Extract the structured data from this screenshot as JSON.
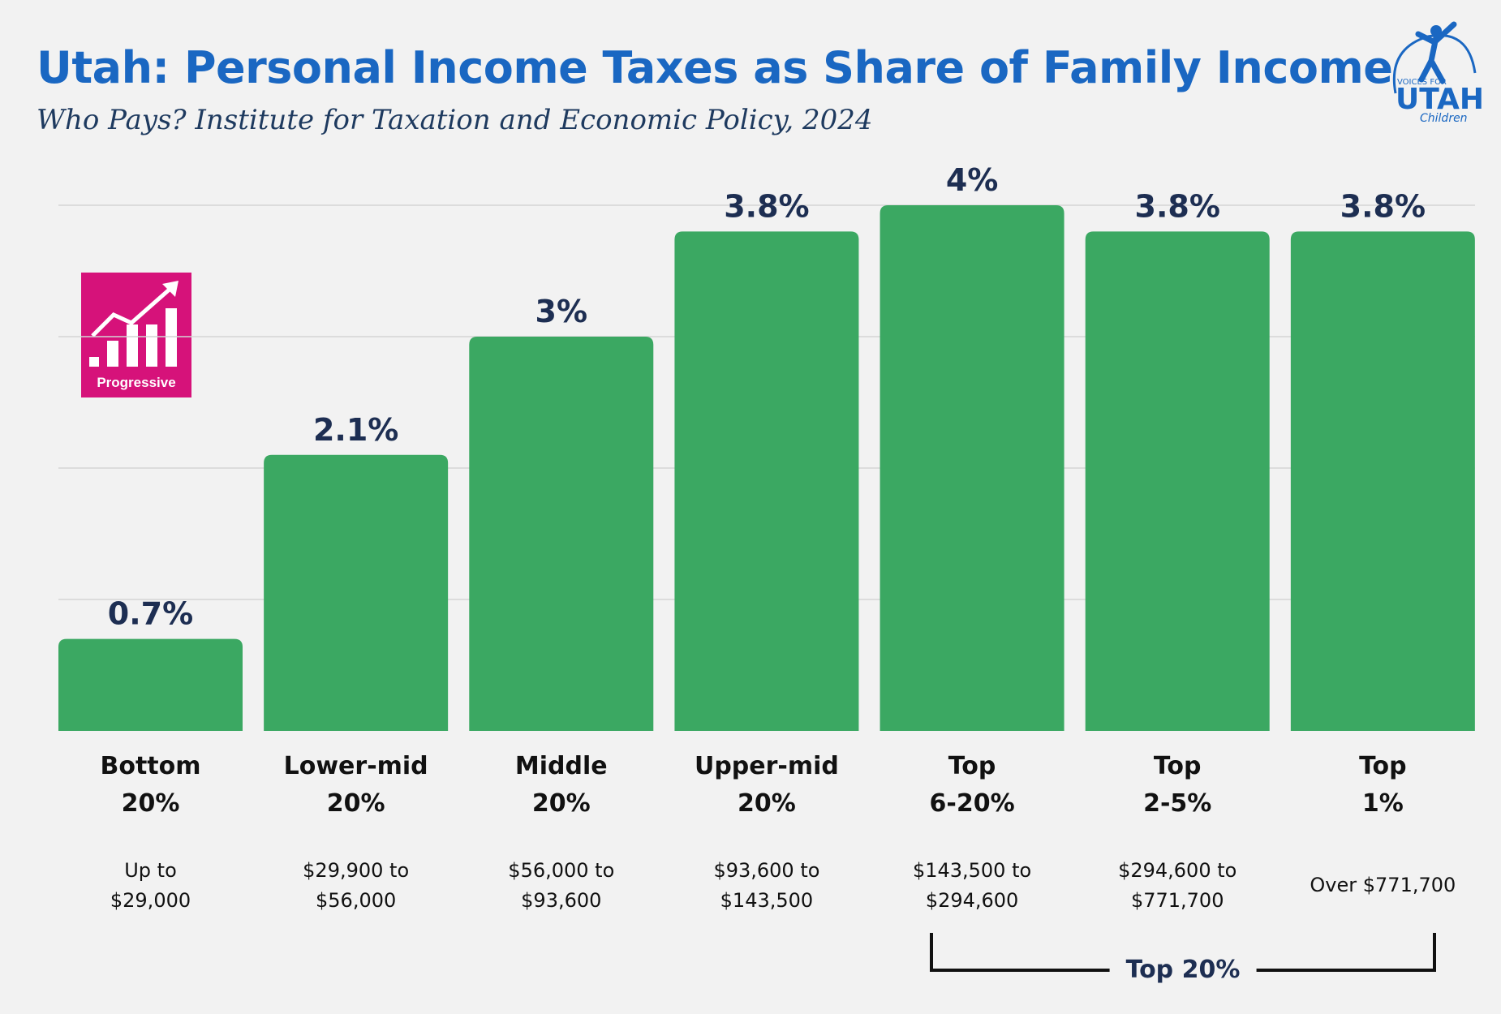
{
  "header": {
    "title": "Utah: Personal Income Taxes as Share of Family Income",
    "subtitle": "Who Pays? Institute for Taxation and Economic Policy, 2024"
  },
  "logo": {
    "line1": "VOICES FOR",
    "line2": "UTAH",
    "line3": "Children",
    "color": "#1a67c2"
  },
  "badge": {
    "label": "Progressive",
    "color": "#d6127a"
  },
  "chart_data": {
    "type": "bar",
    "categories": [
      "Bottom 20%",
      "Lower-mid 20%",
      "Middle 20%",
      "Upper-mid 20%",
      "Top 6-20%",
      "Top 2-5%",
      "Top 1%"
    ],
    "category_lines": [
      [
        "Bottom",
        "20%"
      ],
      [
        "Lower-mid",
        "20%"
      ],
      [
        "Middle",
        "20%"
      ],
      [
        "Upper-mid",
        "20%"
      ],
      [
        "Top",
        "6-20%"
      ],
      [
        "Top",
        "2-5%"
      ],
      [
        "Top",
        "1%"
      ]
    ],
    "income_ranges": [
      [
        "Up to",
        "$29,000"
      ],
      [
        "$29,900 to",
        "$56,000"
      ],
      [
        "$56,000 to",
        "$93,600"
      ],
      [
        "$93,600 to",
        "$143,500"
      ],
      [
        "$143,500 to",
        "$294,600"
      ],
      [
        "$294,600 to",
        "$771,700"
      ],
      [
        "Over $771,700"
      ]
    ],
    "values": [
      0.7,
      2.1,
      3.0,
      3.8,
      4.0,
      3.8,
      3.8
    ],
    "value_labels": [
      "0.7%",
      "2.1%",
      "3%",
      "3.8%",
      "4%",
      "3.8%",
      "3.8%"
    ],
    "ylim": [
      0,
      4
    ],
    "grid": true,
    "bar_color": "#3ba862",
    "group_bracket": {
      "label": "Top 20%",
      "from_index": 4,
      "to_index": 6
    }
  }
}
